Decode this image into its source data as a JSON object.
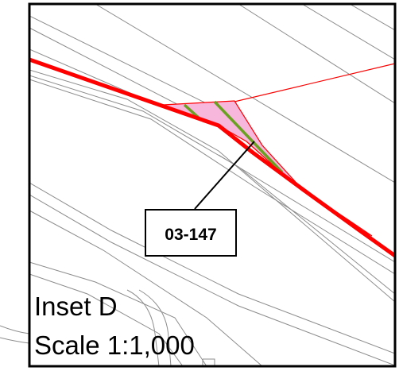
{
  "inset": {
    "title": "Inset D",
    "scale": "Scale 1:1,000"
  },
  "parcel": {
    "id": "03-147"
  },
  "colors": {
    "frame": "#000000",
    "boundary": "#ff0000",
    "parcel_fill": "#f7b6dc",
    "green_line": "#6aa121",
    "linework": "#8c8c8c",
    "label_box": "#ffffff"
  }
}
